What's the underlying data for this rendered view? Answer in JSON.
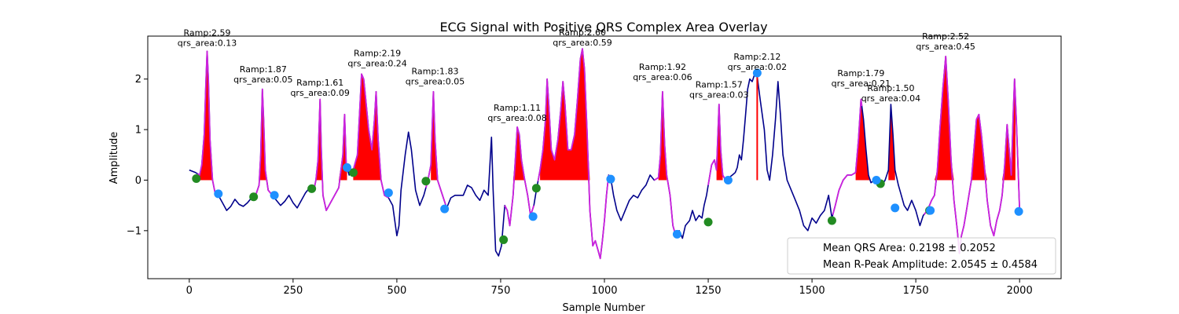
{
  "chart_data": {
    "type": "line",
    "title": "ECG Signal with Positive QRS Complex Area Overlay",
    "xlabel": "Sample Number",
    "ylabel": "Amplitude",
    "xlim": [
      -100,
      2100
    ],
    "ylim": [
      -1.95,
      2.85
    ],
    "xticks": [
      0,
      250,
      500,
      750,
      1000,
      1250,
      1500,
      1750,
      2000
    ],
    "yticks": [
      -1,
      0,
      1,
      2
    ],
    "ytick_labels": [
      "−1",
      "0",
      "1",
      "2"
    ],
    "grid": false,
    "legend_position": "lower-right",
    "legend": [
      "Mean QRS Area: 0.2198 ± 0.2052",
      "Mean R-Peak Amplitude: 2.0545 ± 0.4584"
    ],
    "colors": {
      "ecg": "#00008b",
      "qrs_segment": "#cc22dd",
      "area_fill": "#ff0000",
      "qrs_onset": "#228b22",
      "qrs_offset": "#1e90ff"
    },
    "ecg_signal": [
      [
        0,
        0.2
      ],
      [
        15,
        0.15
      ],
      [
        25,
        0.1
      ],
      [
        30,
        0.3
      ],
      [
        36,
        0.9
      ],
      [
        40,
        1.9
      ],
      [
        43,
        2.55
      ],
      [
        46,
        2.0
      ],
      [
        50,
        0.8
      ],
      [
        56,
        0.0
      ],
      [
        62,
        -0.25
      ],
      [
        70,
        -0.3
      ],
      [
        80,
        -0.45
      ],
      [
        90,
        -0.6
      ],
      [
        100,
        -0.52
      ],
      [
        110,
        -0.38
      ],
      [
        120,
        -0.48
      ],
      [
        130,
        -0.52
      ],
      [
        140,
        -0.45
      ],
      [
        150,
        -0.35
      ],
      [
        160,
        -0.3
      ],
      [
        168,
        -0.1
      ],
      [
        172,
        0.5
      ],
      [
        176,
        1.8
      ],
      [
        179,
        1.2
      ],
      [
        183,
        0.2
      ],
      [
        190,
        -0.2
      ],
      [
        200,
        -0.3
      ],
      [
        210,
        -0.4
      ],
      [
        220,
        -0.5
      ],
      [
        230,
        -0.42
      ],
      [
        240,
        -0.3
      ],
      [
        250,
        -0.45
      ],
      [
        260,
        -0.55
      ],
      [
        270,
        -0.4
      ],
      [
        280,
        -0.25
      ],
      [
        290,
        -0.15
      ],
      [
        300,
        -0.2
      ],
      [
        305,
        0.0
      ],
      [
        310,
        0.4
      ],
      [
        315,
        1.6
      ],
      [
        318,
        0.6
      ],
      [
        322,
        -0.3
      ],
      [
        330,
        -0.6
      ],
      [
        340,
        -0.45
      ],
      [
        350,
        -0.3
      ],
      [
        360,
        -0.15
      ],
      [
        370,
        0.5
      ],
      [
        374,
        1.3
      ],
      [
        378,
        0.3
      ],
      [
        385,
        0.1
      ],
      [
        395,
        0.2
      ],
      [
        405,
        0.5
      ],
      [
        410,
        1.3
      ],
      [
        415,
        2.1
      ],
      [
        420,
        2.0
      ],
      [
        425,
        1.6
      ],
      [
        432,
        1.0
      ],
      [
        440,
        0.6
      ],
      [
        446,
        1.2
      ],
      [
        450,
        1.75
      ],
      [
        455,
        0.8
      ],
      [
        462,
        0.0
      ],
      [
        470,
        -0.3
      ],
      [
        480,
        -0.35
      ],
      [
        490,
        -0.5
      ],
      [
        500,
        -1.1
      ],
      [
        505,
        -0.9
      ],
      [
        510,
        -0.2
      ],
      [
        520,
        0.5
      ],
      [
        528,
        0.95
      ],
      [
        535,
        0.6
      ],
      [
        545,
        -0.2
      ],
      [
        555,
        -0.5
      ],
      [
        565,
        -0.3
      ],
      [
        575,
        0.0
      ],
      [
        582,
        0.3
      ],
      [
        588,
        1.75
      ],
      [
        592,
        0.8
      ],
      [
        598,
        0.0
      ],
      [
        610,
        -0.3
      ],
      [
        620,
        -0.55
      ],
      [
        630,
        -0.35
      ],
      [
        640,
        -0.3
      ],
      [
        650,
        -0.3
      ],
      [
        660,
        -0.3
      ],
      [
        670,
        -0.1
      ],
      [
        680,
        -0.15
      ],
      [
        690,
        -0.3
      ],
      [
        700,
        -0.4
      ],
      [
        710,
        -0.2
      ],
      [
        720,
        -0.3
      ],
      [
        728,
        0.85
      ],
      [
        732,
        -0.2
      ],
      [
        738,
        -1.4
      ],
      [
        745,
        -1.5
      ],
      [
        752,
        -1.3
      ],
      [
        760,
        -0.5
      ],
      [
        766,
        -0.6
      ],
      [
        772,
        -0.9
      ],
      [
        780,
        -0.3
      ],
      [
        786,
        0.5
      ],
      [
        790,
        1.05
      ],
      [
        795,
        0.9
      ],
      [
        800,
        0.4
      ],
      [
        808,
        0.0
      ],
      [
        815,
        -0.3
      ],
      [
        822,
        -0.7
      ],
      [
        830,
        -0.5
      ],
      [
        836,
        -0.2
      ],
      [
        845,
        0.2
      ],
      [
        852,
        0.6
      ],
      [
        858,
        1.2
      ],
      [
        862,
        2.0
      ],
      [
        866,
        1.5
      ],
      [
        872,
        0.6
      ],
      [
        880,
        0.4
      ],
      [
        888,
        0.8
      ],
      [
        895,
        1.4
      ],
      [
        900,
        1.95
      ],
      [
        905,
        1.5
      ],
      [
        912,
        0.6
      ],
      [
        920,
        0.6
      ],
      [
        928,
        0.9
      ],
      [
        935,
        1.6
      ],
      [
        942,
        2.4
      ],
      [
        947,
        2.6
      ],
      [
        952,
        2.2
      ],
      [
        958,
        1.0
      ],
      [
        965,
        -0.6
      ],
      [
        972,
        -1.3
      ],
      [
        978,
        -1.2
      ],
      [
        985,
        -1.4
      ],
      [
        990,
        -1.55
      ],
      [
        995,
        -1.2
      ],
      [
        1000,
        -0.8
      ],
      [
        1005,
        -0.3
      ],
      [
        1010,
        0.1
      ],
      [
        1015,
        0.05
      ],
      [
        1022,
        -0.3
      ],
      [
        1030,
        -0.6
      ],
      [
        1040,
        -0.8
      ],
      [
        1050,
        -0.6
      ],
      [
        1060,
        -0.4
      ],
      [
        1070,
        -0.3
      ],
      [
        1080,
        -0.35
      ],
      [
        1090,
        -0.2
      ],
      [
        1100,
        -0.1
      ],
      [
        1110,
        0.1
      ],
      [
        1120,
        0.0
      ],
      [
        1130,
        0.05
      ],
      [
        1135,
        0.5
      ],
      [
        1140,
        1.75
      ],
      [
        1145,
        0.7
      ],
      [
        1150,
        0.1
      ],
      [
        1158,
        -0.3
      ],
      [
        1165,
        -0.9
      ],
      [
        1172,
        -1.1
      ],
      [
        1180,
        -1.0
      ],
      [
        1188,
        -1.15
      ],
      [
        1195,
        -0.9
      ],
      [
        1205,
        -0.8
      ],
      [
        1212,
        -0.6
      ],
      [
        1220,
        -0.8
      ],
      [
        1228,
        -0.7
      ],
      [
        1235,
        -0.75
      ],
      [
        1240,
        -0.5
      ],
      [
        1246,
        -0.3
      ],
      [
        1252,
        0.0
      ],
      [
        1258,
        0.3
      ],
      [
        1265,
        0.4
      ],
      [
        1270,
        0.2
      ],
      [
        1276,
        1.5
      ],
      [
        1280,
        0.6
      ],
      [
        1285,
        0.1
      ],
      [
        1292,
        0.0
      ],
      [
        1300,
        0.05
      ],
      [
        1308,
        0.1
      ],
      [
        1315,
        0.15
      ],
      [
        1320,
        0.25
      ],
      [
        1325,
        0.5
      ],
      [
        1330,
        0.4
      ],
      [
        1335,
        0.8
      ],
      [
        1340,
        1.3
      ],
      [
        1345,
        1.8
      ],
      [
        1350,
        2.0
      ],
      [
        1356,
        1.95
      ],
      [
        1362,
        2.1
      ],
      [
        1368,
        2.05
      ],
      [
        1375,
        1.6
      ],
      [
        1385,
        1.0
      ],
      [
        1392,
        0.2
      ],
      [
        1398,
        0.0
      ],
      [
        1405,
        0.5
      ],
      [
        1412,
        1.2
      ],
      [
        1418,
        1.95
      ],
      [
        1424,
        1.3
      ],
      [
        1430,
        0.5
      ],
      [
        1440,
        0.0
      ],
      [
        1450,
        -0.2
      ],
      [
        1460,
        -0.4
      ],
      [
        1470,
        -0.6
      ],
      [
        1480,
        -0.9
      ],
      [
        1490,
        -1.0
      ],
      [
        1500,
        -0.75
      ],
      [
        1510,
        -0.85
      ],
      [
        1520,
        -0.7
      ],
      [
        1530,
        -0.6
      ],
      [
        1540,
        -0.3
      ],
      [
        1548,
        -0.75
      ],
      [
        1556,
        -0.5
      ],
      [
        1565,
        -0.2
      ],
      [
        1575,
        0.0
      ],
      [
        1585,
        0.1
      ],
      [
        1595,
        0.1
      ],
      [
        1605,
        0.15
      ],
      [
        1612,
        0.8
      ],
      [
        1618,
        1.6
      ],
      [
        1624,
        1.2
      ],
      [
        1630,
        0.6
      ],
      [
        1636,
        0.1
      ],
      [
        1642,
        -0.05
      ],
      [
        1650,
        0.0
      ],
      [
        1660,
        -0.05
      ],
      [
        1668,
        -0.1
      ],
      [
        1676,
        0.0
      ],
      [
        1684,
        0.2
      ],
      [
        1690,
        1.5
      ],
      [
        1695,
        0.9
      ],
      [
        1700,
        0.2
      ],
      [
        1708,
        -0.1
      ],
      [
        1715,
        -0.3
      ],
      [
        1722,
        -0.5
      ],
      [
        1730,
        -0.6
      ],
      [
        1740,
        -0.4
      ],
      [
        1750,
        -0.6
      ],
      [
        1760,
        -0.9
      ],
      [
        1768,
        -0.7
      ],
      [
        1778,
        -0.6
      ],
      [
        1788,
        -0.4
      ],
      [
        1795,
        -0.3
      ],
      [
        1802,
        0.2
      ],
      [
        1808,
        1.0
      ],
      [
        1815,
        1.8
      ],
      [
        1822,
        2.45
      ],
      [
        1828,
        1.6
      ],
      [
        1835,
        0.4
      ],
      [
        1842,
        -0.4
      ],
      [
        1850,
        -1.0
      ],
      [
        1855,
        -1.45
      ],
      [
        1860,
        -1.1
      ],
      [
        1866,
        -0.9
      ],
      [
        1872,
        -0.6
      ],
      [
        1878,
        -0.3
      ],
      [
        1884,
        0.0
      ],
      [
        1890,
        0.6
      ],
      [
        1896,
        1.2
      ],
      [
        1902,
        1.3
      ],
      [
        1908,
        0.9
      ],
      [
        1915,
        0.3
      ],
      [
        1922,
        -0.4
      ],
      [
        1930,
        -0.9
      ],
      [
        1938,
        -1.1
      ],
      [
        1945,
        -0.8
      ],
      [
        1952,
        -0.6
      ],
      [
        1958,
        -0.3
      ],
      [
        1964,
        0.3
      ],
      [
        1970,
        1.1
      ],
      [
        1975,
        0.6
      ],
      [
        1980,
        0.1
      ],
      [
        1985,
        1.4
      ],
      [
        1988,
        2.0
      ],
      [
        1992,
        1.2
      ],
      [
        1996,
        0.3
      ],
      [
        2000,
        -0.6
      ]
    ],
    "qrs_segments": [
      [
        20,
        70
      ],
      [
        155,
        205
      ],
      [
        295,
        380
      ],
      [
        395,
        480
      ],
      [
        570,
        620
      ],
      [
        760,
        830
      ],
      [
        840,
        1010
      ],
      [
        1120,
        1175
      ],
      [
        1250,
        1300
      ],
      [
        1550,
        1620
      ],
      [
        1770,
        2000
      ]
    ],
    "fill_regions": [
      [
        25,
        56
      ],
      [
        170,
        185
      ],
      [
        305,
        380
      ],
      [
        395,
        462
      ],
      [
        582,
        598
      ],
      [
        780,
        808
      ],
      [
        845,
        1015
      ],
      [
        1130,
        1150
      ],
      [
        1270,
        1285
      ],
      [
        1605,
        1645
      ],
      [
        1684,
        1700
      ],
      [
        1795,
        1990
      ]
    ],
    "r_peak_spike": {
      "x": 1368,
      "y": 2.12
    },
    "onset_points": [
      [
        17,
        0.03
      ],
      [
        155,
        -0.33
      ],
      [
        295,
        -0.17
      ],
      [
        395,
        0.15
      ],
      [
        570,
        -0.02
      ],
      [
        757,
        -1.18
      ],
      [
        836,
        -0.16
      ],
      [
        1250,
        -0.83
      ],
      [
        1548,
        -0.8
      ],
      [
        1665,
        -0.07
      ],
      [
        1783,
        -0.6
      ]
    ],
    "offset_points": [
      [
        70,
        -0.27
      ],
      [
        205,
        -0.3
      ],
      [
        380,
        0.25
      ],
      [
        480,
        -0.25
      ],
      [
        615,
        -0.57
      ],
      [
        828,
        -0.72
      ],
      [
        1015,
        0.02
      ],
      [
        1175,
        -1.07
      ],
      [
        1298,
        0.0
      ],
      [
        1368,
        2.12
      ],
      [
        1655,
        0.0
      ],
      [
        1700,
        -0.55
      ],
      [
        1785,
        -0.6
      ],
      [
        1998,
        -0.62
      ]
    ],
    "annotations": [
      {
        "x": 43,
        "y": 2.59,
        "ramp": "Ramp:2.59",
        "qrs": "qrs_area:0.13"
      },
      {
        "x": 178,
        "y": 1.87,
        "ramp": "Ramp:1.87",
        "qrs": "qrs_area:0.05"
      },
      {
        "x": 315,
        "y": 1.61,
        "ramp": "Ramp:1.61",
        "qrs": "qrs_area:0.09"
      },
      {
        "x": 453,
        "y": 2.19,
        "ramp": "Ramp:2.19",
        "qrs": "qrs_area:0.24"
      },
      {
        "x": 592,
        "y": 1.83,
        "ramp": "Ramp:1.83",
        "qrs": "qrs_area:0.05"
      },
      {
        "x": 790,
        "y": 1.11,
        "ramp": "Ramp:1.11",
        "qrs": "qrs_area:0.08"
      },
      {
        "x": 947,
        "y": 2.6,
        "ramp": "Ramp:2.60",
        "qrs": "qrs_area:0.59"
      },
      {
        "x": 1140,
        "y": 1.92,
        "ramp": "Ramp:1.92",
        "qrs": "qrs_area:0.06"
      },
      {
        "x": 1276,
        "y": 1.57,
        "ramp": "Ramp:1.57",
        "qrs": "qrs_area:0.03"
      },
      {
        "x": 1368,
        "y": 2.12,
        "ramp": "Ramp:2.12",
        "qrs": "qrs_area:0.02"
      },
      {
        "x": 1618,
        "y": 1.79,
        "ramp": "Ramp:1.79",
        "qrs": "qrs_area:0.21"
      },
      {
        "x": 1690,
        "y": 1.5,
        "ramp": "Ramp:1.50",
        "qrs": "qrs_area:0.04"
      },
      {
        "x": 1822,
        "y": 2.52,
        "ramp": "Ramp:2.52",
        "qrs": "qrs_area:0.45"
      }
    ]
  }
}
